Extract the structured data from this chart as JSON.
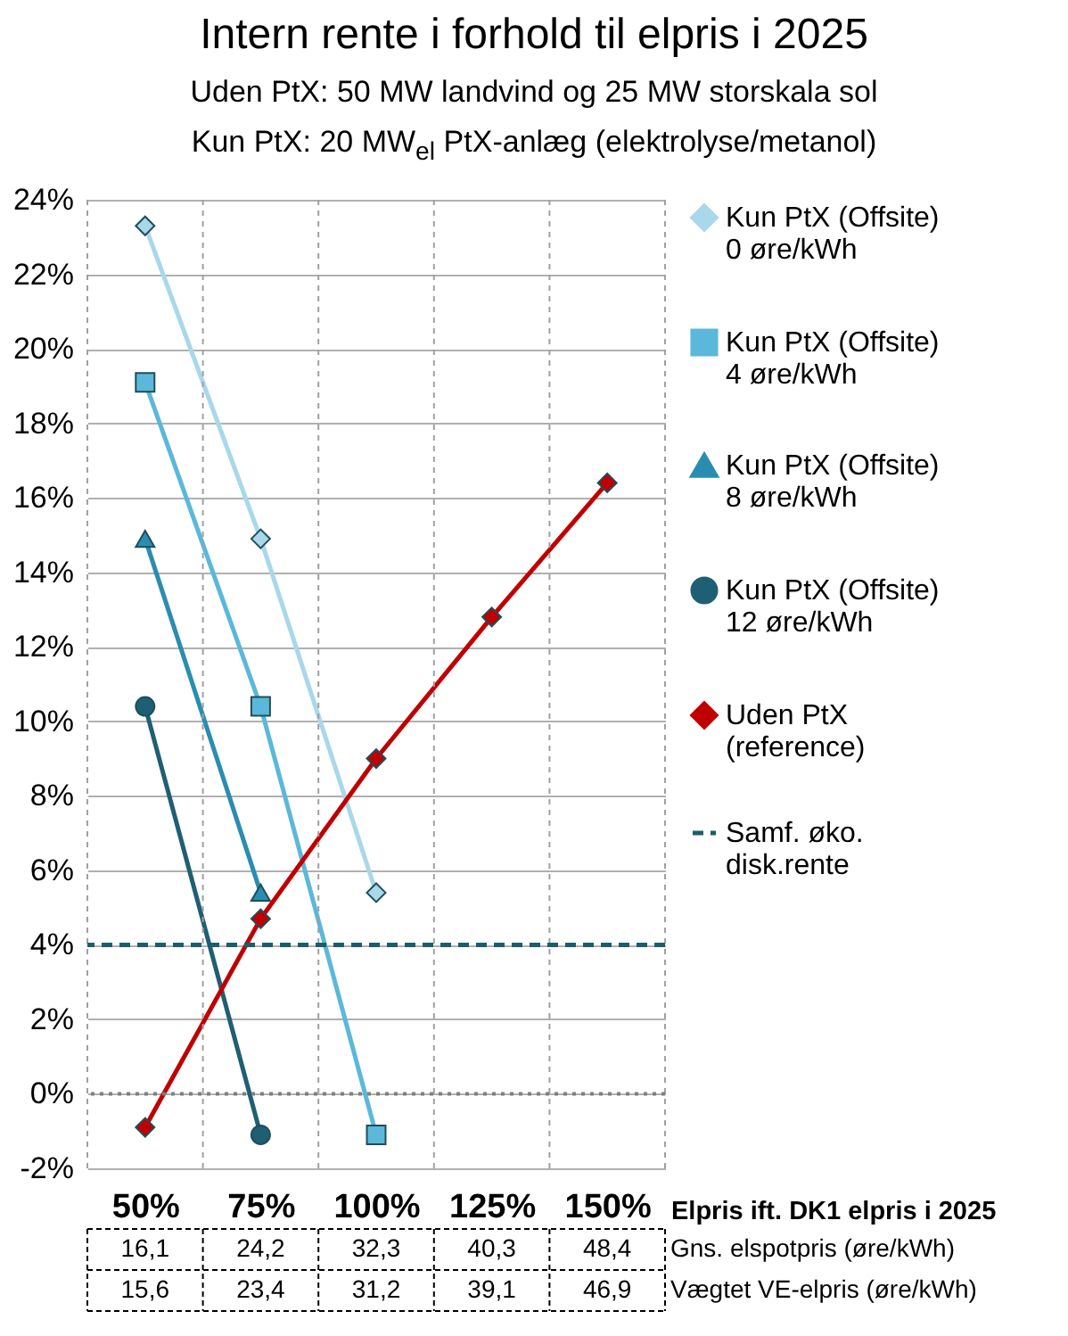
{
  "chart_data": {
    "type": "line",
    "title": "Intern rente i forhold til elpris i 2025",
    "subtitle": [
      "Uden PtX: 50 MW landvind og 25 MW storskala sol",
      "Kun PtX: 20 MW$_{el}$ PtX-anlæg (elektrolyse/metanol)"
    ],
    "xlabel": "Elpris ift. DK1 elpris i 2025",
    "categories": [
      "50%",
      "75%",
      "100%",
      "125%",
      "150%"
    ],
    "series": [
      {
        "name": "Kun PtX (Offsite)\n0 øre/kWh",
        "color": "#a8d8ea",
        "marker": "diamond",
        "values": [
          23.3,
          14.9,
          5.4,
          null,
          null
        ]
      },
      {
        "name": "Kun PtX (Offsite)\n4 øre/kWh",
        "color": "#5bb8da",
        "marker": "square",
        "values": [
          19.1,
          10.4,
          -1.1,
          null,
          null
        ]
      },
      {
        "name": "Kun PtX (Offsite)\n8 øre/kWh",
        "color": "#2a8db0",
        "marker": "triangle",
        "values": [
          14.9,
          5.4,
          null,
          null,
          null
        ]
      },
      {
        "name": "Kun PtX (Offsite)\n12 øre/kWh",
        "color": "#1f5f73",
        "marker": "circle",
        "values": [
          10.4,
          -1.1,
          null,
          null,
          null
        ]
      },
      {
        "name": "Uden PtX\n(reference)",
        "color": "#c00000",
        "marker": "diamond",
        "values": [
          -0.9,
          4.7,
          9.0,
          12.8,
          16.4
        ]
      }
    ],
    "ref_lines": [
      {
        "axis": "y",
        "value": 4,
        "label": "Samf. øko.\ndisk.rente",
        "color": "#1b5e6b",
        "line_style": "dashed"
      },
      {
        "axis": "y",
        "value": 0,
        "label": null,
        "color": "#7f7f7f",
        "line_style": "dotted"
      }
    ],
    "ylim": [
      -2,
      24
    ],
    "yticks": [
      {
        "value": -2,
        "label": "-2%"
      },
      {
        "value": 0,
        "label": "0%"
      },
      {
        "value": 2,
        "label": "2%"
      },
      {
        "value": 4,
        "label": "4%"
      },
      {
        "value": 6,
        "label": "6%"
      },
      {
        "value": 8,
        "label": "8%"
      },
      {
        "value": 10,
        "label": "10%"
      },
      {
        "value": 12,
        "label": "12%"
      },
      {
        "value": 14,
        "label": "14%"
      },
      {
        "value": 16,
        "label": "16%"
      },
      {
        "value": 18,
        "label": "18%"
      },
      {
        "value": 20,
        "label": "20%"
      },
      {
        "value": 22,
        "label": "22%"
      },
      {
        "value": 24,
        "label": "24%"
      }
    ],
    "grid": true,
    "legend": "right",
    "annotations": [
      "16,1",
      "24,2",
      "32,3",
      "40,3",
      "48,4",
      "Gns. elspotpris (øre/kWh)",
      "15,6",
      "23,4",
      "31,2",
      "39,1",
      "46,9",
      "Vægtet VE-elpris (øre/kWh)"
    ]
  }
}
